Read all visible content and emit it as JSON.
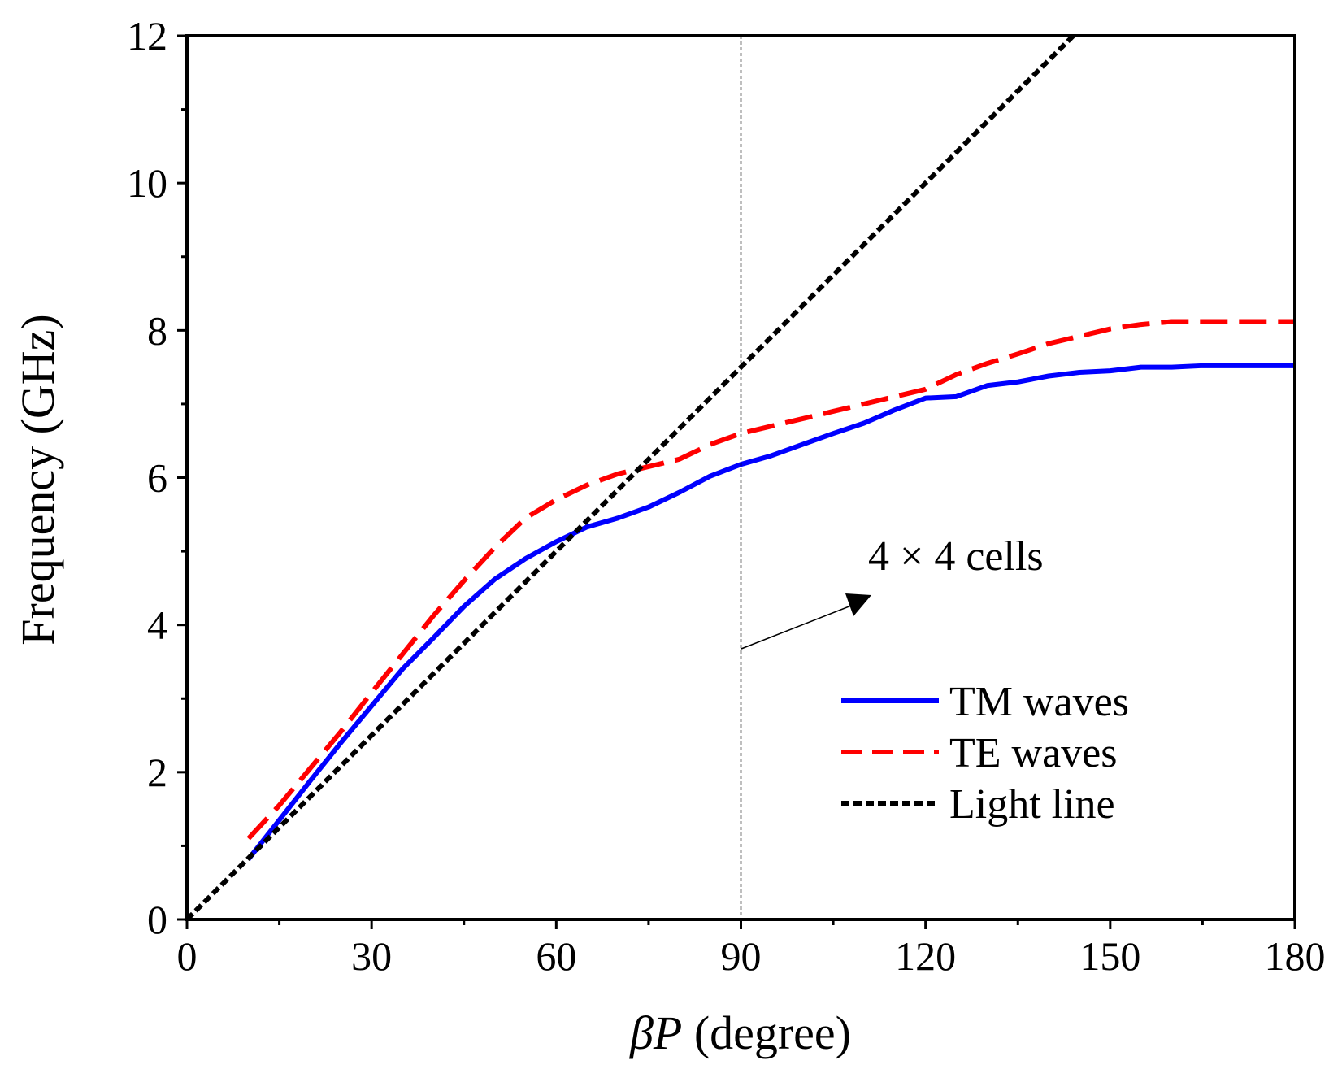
{
  "chart_data": {
    "type": "line",
    "title": "",
    "xlabel_symbol": "βP",
    "xlabel_unit": " (degree)",
    "ylabel": "Frequency (GHz)",
    "xlim": [
      0,
      180
    ],
    "ylim": [
      0,
      12
    ],
    "x_ticks": [
      0,
      30,
      60,
      90,
      120,
      150,
      180
    ],
    "y_ticks": [
      0,
      2,
      4,
      6,
      8,
      10,
      12
    ],
    "x_minor_step": 15,
    "y_minor_step": 1,
    "grid": false,
    "legend_position": "lower-right",
    "series": [
      {
        "name": "TM waves",
        "color": "#0000ff",
        "style": "solid",
        "x": [
          10,
          15,
          20,
          25,
          30,
          35,
          40,
          45,
          50,
          55,
          60,
          65,
          70,
          75,
          80,
          85,
          90,
          95,
          100,
          105,
          110,
          115,
          120,
          125,
          130,
          135,
          140,
          145,
          150,
          155,
          160,
          165,
          170,
          175,
          180
        ],
        "y": [
          0.82,
          1.35,
          1.88,
          2.4,
          2.9,
          3.4,
          3.82,
          4.25,
          4.62,
          4.9,
          5.13,
          5.33,
          5.45,
          5.6,
          5.8,
          6.02,
          6.18,
          6.3,
          6.45,
          6.6,
          6.74,
          6.92,
          7.08,
          7.1,
          7.25,
          7.3,
          7.38,
          7.43,
          7.45,
          7.5,
          7.5,
          7.52,
          7.52,
          7.52,
          7.52
        ]
      },
      {
        "name": "TE waves",
        "color": "#ff0000",
        "style": "dashed",
        "x": [
          10,
          15,
          20,
          25,
          30,
          35,
          40,
          45,
          50,
          55,
          60,
          65,
          70,
          75,
          80,
          85,
          90,
          95,
          100,
          105,
          110,
          115,
          120,
          125,
          130,
          135,
          140,
          145,
          150,
          155,
          160,
          165,
          170,
          175,
          180
        ],
        "y": [
          1.1,
          1.55,
          2.05,
          2.55,
          3.08,
          3.6,
          4.12,
          4.6,
          5.05,
          5.45,
          5.7,
          5.9,
          6.05,
          6.15,
          6.25,
          6.45,
          6.6,
          6.7,
          6.8,
          6.9,
          7.0,
          7.1,
          7.2,
          7.4,
          7.55,
          7.68,
          7.82,
          7.92,
          8.02,
          8.08,
          8.12,
          8.12,
          8.12,
          8.12,
          8.12
        ]
      },
      {
        "name": "Light line",
        "color": "#000000",
        "style": "dotted",
        "x": [
          0,
          144
        ],
        "y": [
          0,
          12
        ]
      }
    ],
    "annotations": [
      {
        "text": "4 × 4 cells",
        "kind": "arrow-label"
      }
    ],
    "reference_lines": [
      {
        "orientation": "vertical",
        "x": 90,
        "style": "thin-dashed"
      }
    ]
  }
}
